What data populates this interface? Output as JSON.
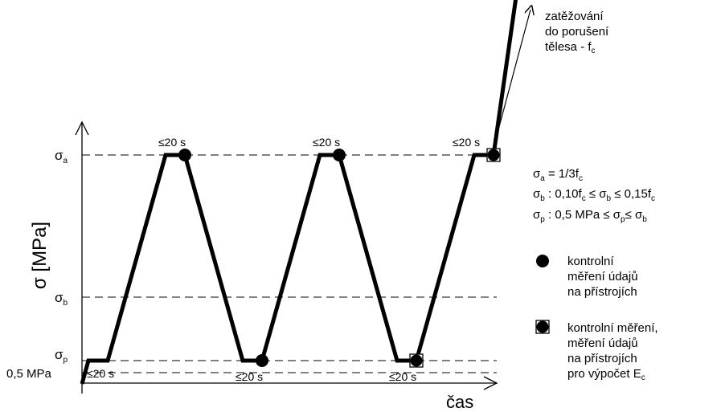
{
  "axes": {
    "y_label": "σ [MPa]",
    "x_label": "čas"
  },
  "levels": {
    "sigma_a": {
      "symbol": "σ",
      "sub": "a"
    },
    "sigma_b": {
      "symbol": "σ",
      "sub": "b"
    },
    "sigma_p": {
      "symbol": "σ",
      "sub": "p"
    },
    "base": "0,5 MPa"
  },
  "dwell_label": "≤20 s",
  "arrow_annotation": {
    "lines": [
      "zatěžování",
      "do porušení"
    ],
    "line3_text": "tělesa - f",
    "line3_sub": "c"
  },
  "formulas": {
    "f1": {
      "lhs": "σ",
      "lhs_sub": "a",
      "text": " = 1/3f",
      "sub": "c"
    },
    "f2": {
      "lhs": "σ",
      "lhs_sub": "b",
      "t1": " :  0,10f",
      "s1": "c",
      "t2": " ≤ σ",
      "s2": "b",
      "t3": " ≤ 0,15f",
      "s3": "c"
    },
    "f3": {
      "lhs": "σ",
      "lhs_sub": "p",
      "t1": " :  0,5 MPa ≤ σ",
      "s1": "p",
      "t2": "≤ σ",
      "s2": "b"
    }
  },
  "legend": {
    "dot": [
      "kontrolní",
      "měření údajů",
      "na přístrojích"
    ],
    "square": [
      "kontrolní měření,",
      "měření údajů",
      "na přístrojích"
    ],
    "square_last_text": "pro výpočet E",
    "square_last_sub": "c"
  },
  "load_path": [
    [
      0,
      0
    ],
    [
      0.5,
      0.4
    ],
    [
      2,
      0.4
    ],
    [
      6.5,
      8
    ],
    [
      8,
      8
    ],
    [
      12.5,
      0.4
    ],
    [
      14,
      0.4
    ],
    [
      18.5,
      8
    ],
    [
      20,
      8
    ],
    [
      24.5,
      0.4
    ],
    [
      26,
      0.4
    ],
    [
      30.5,
      8
    ],
    [
      32,
      8
    ],
    [
      33.8,
      14
    ]
  ],
  "markers": {
    "dots": [
      [
        8,
        8
      ],
      [
        14,
        0.4
      ],
      [
        20,
        8
      ]
    ],
    "squares": [
      [
        26,
        0.4
      ],
      [
        32,
        8
      ]
    ]
  },
  "colors": {
    "line": "#000000",
    "dashed": "#000000"
  }
}
